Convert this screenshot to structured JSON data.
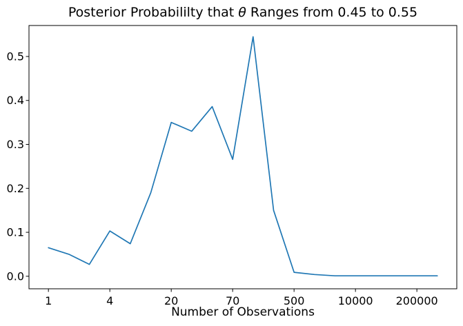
{
  "title": {
    "prefix": "Posterior Probabililty that ",
    "theta": "θ",
    "suffix": " Ranges from 0.45 to 0.55"
  },
  "chart_data": {
    "type": "line",
    "title": "Posterior Probabililty that θ Ranges from 0.45 to 0.55",
    "xlabel": "Number of Observations",
    "ylabel": "",
    "x_scale": "index-positions-with-custom-tick-labels",
    "x": [
      0,
      1,
      2,
      3,
      4,
      5,
      6,
      7,
      8,
      9,
      10,
      11,
      12,
      13,
      14,
      15,
      16,
      17,
      18,
      19
    ],
    "values": [
      0.065,
      0.05,
      0.027,
      0.103,
      0.074,
      0.19,
      0.35,
      0.33,
      0.386,
      0.266,
      0.545,
      0.15,
      0.009,
      0.004,
      0.001,
      0.001,
      0.001,
      0.001,
      0.001,
      0.001
    ],
    "x_tick_positions": [
      0,
      3,
      6,
      9,
      12,
      15,
      18
    ],
    "x_tick_labels": [
      "1",
      "4",
      "20",
      "70",
      "500",
      "10000",
      "200000"
    ],
    "y_ticks": [
      0.0,
      0.1,
      0.2,
      0.3,
      0.4,
      0.5
    ],
    "xlim": [
      -0.95,
      19.95
    ],
    "ylim": [
      -0.0285,
      0.5705
    ],
    "grid": false,
    "legend": null,
    "line_color": "#1f77b4",
    "axis_color": "#000000",
    "background_color": "#ffffff"
  }
}
